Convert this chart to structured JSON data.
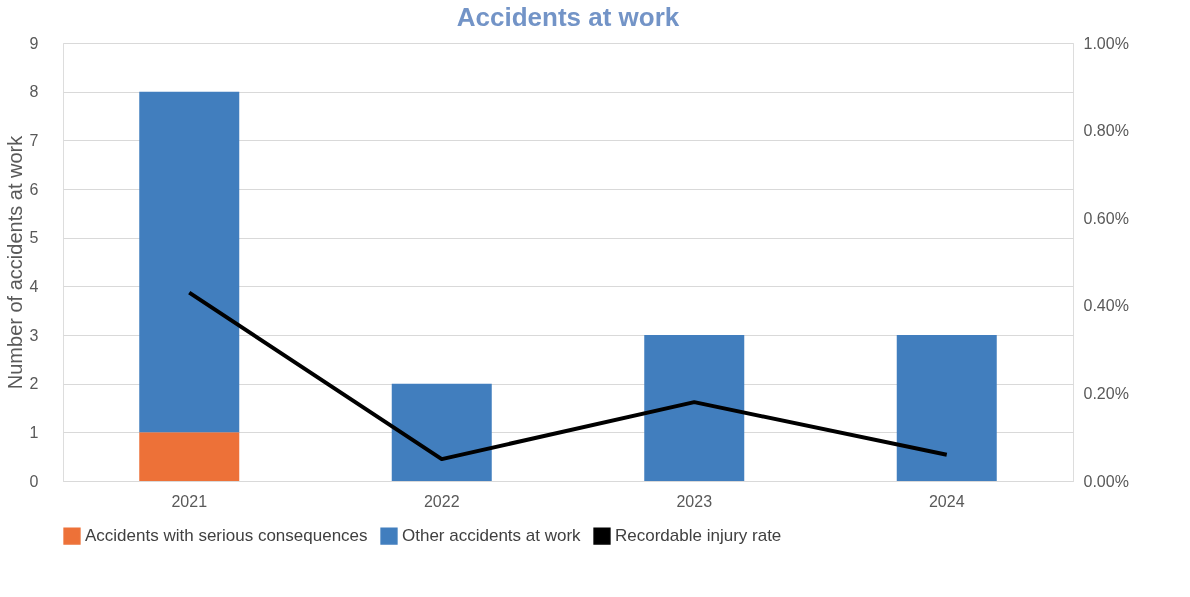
{
  "chart_data": {
    "type": "bar",
    "title": "Accidents at work",
    "ylabel": "Number of accidents at work",
    "categories": [
      "2021",
      "2022",
      "2023",
      "2024"
    ],
    "stacked": true,
    "series": [
      {
        "name": "Accidents with serious consequences",
        "color": "#ed7138",
        "values": [
          1,
          0,
          0,
          0
        ]
      },
      {
        "name": "Other accidents at work",
        "color": "#417ebe",
        "values": [
          7,
          2,
          3,
          3
        ]
      },
      {
        "name": "Recordable injury rate",
        "color": "#000000",
        "type": "line",
        "axis": "y2",
        "values": [
          0.43,
          0.05,
          0.18,
          0.06
        ]
      }
    ],
    "ylim": [
      0,
      9
    ],
    "yticks": [
      0,
      1,
      2,
      3,
      4,
      5,
      6,
      7,
      8,
      9
    ],
    "y2lim": [
      0,
      1
    ],
    "y2ticks": [
      {
        "value": 0,
        "label": "0.00%"
      },
      {
        "value": 0.2,
        "label": "0.20%"
      },
      {
        "value": 0.4,
        "label": "0.40%"
      },
      {
        "value": 0.6,
        "label": "0.60%"
      },
      {
        "value": 0.8,
        "label": "0.80%"
      },
      {
        "value": 1,
        "label": "1.00%"
      }
    ],
    "grid": "y",
    "legend": "bottom",
    "marker": "none",
    "line_style": "solid"
  }
}
